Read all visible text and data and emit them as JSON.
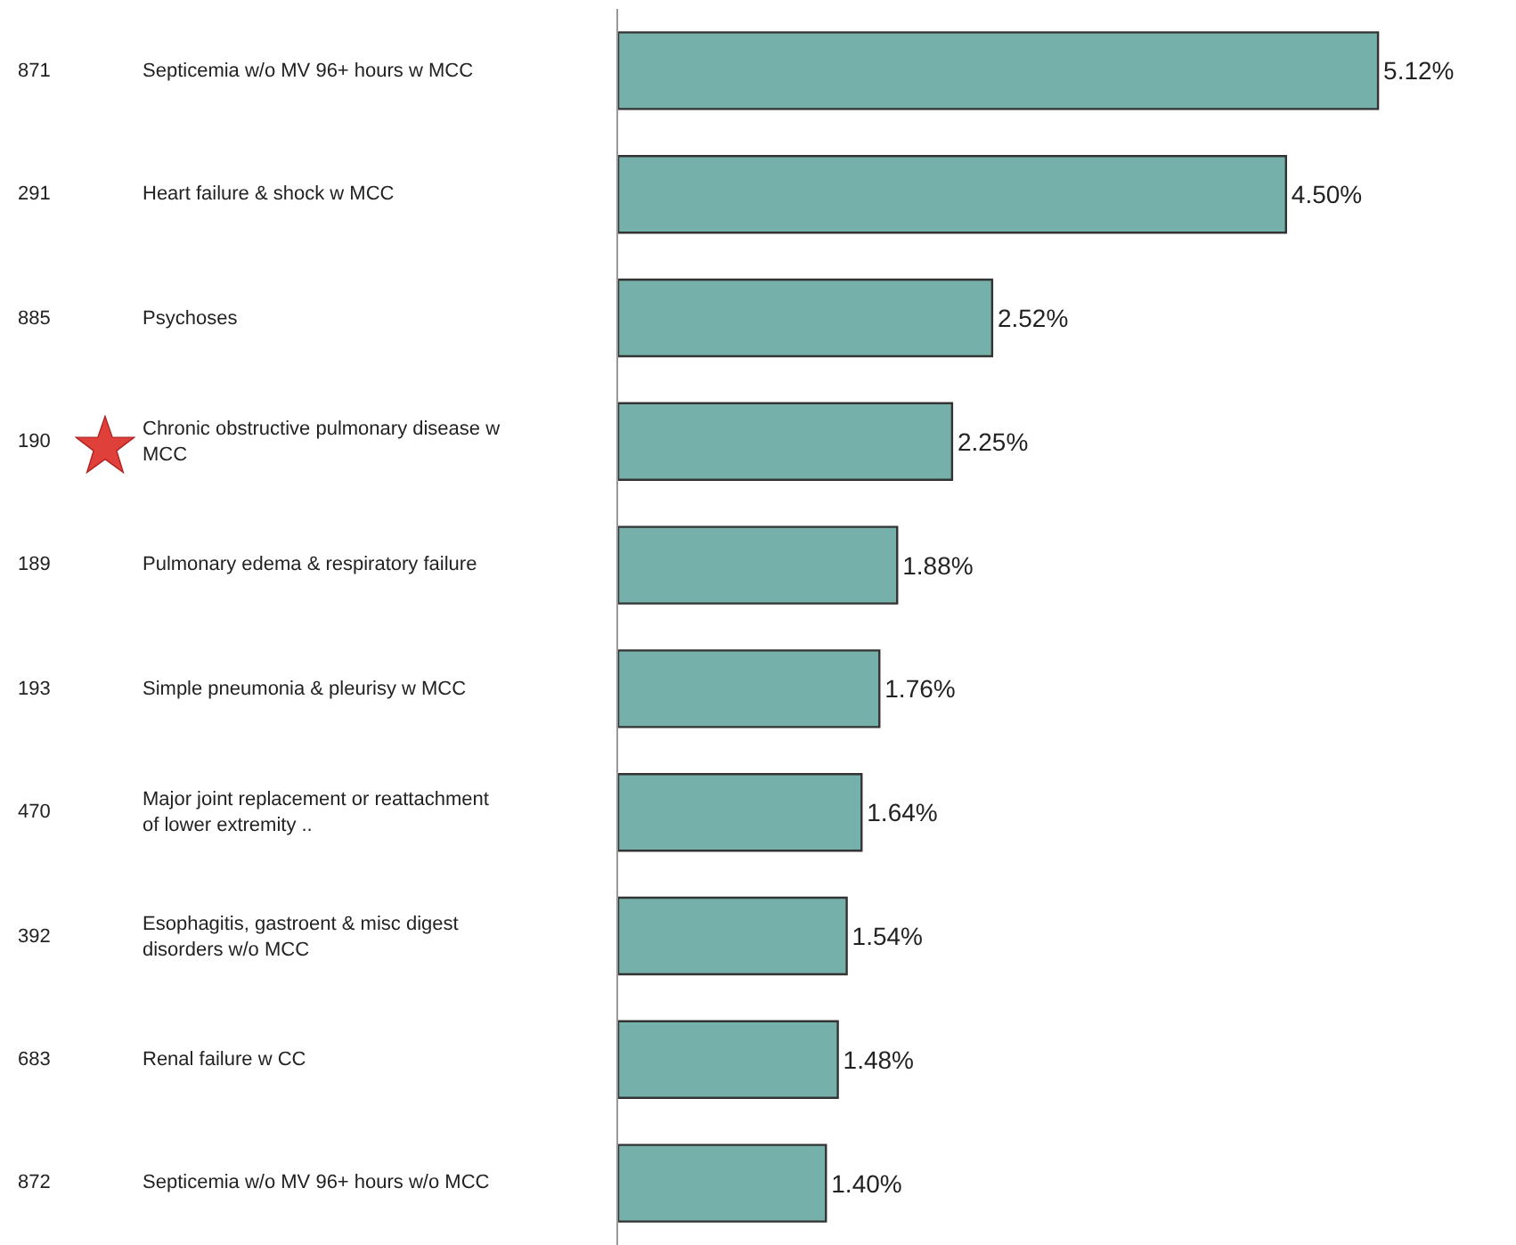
{
  "chart_data": {
    "type": "bar",
    "orientation": "horizontal",
    "categories": [
      "871 Septicemia w/o MV 96+ hours w MCC",
      "291 Heart failure & shock w MCC",
      "885 Psychoses",
      "190 Chronic obstructive pulmonary disease w MCC",
      "189 Pulmonary edema & respiratory failure",
      "193 Simple pneumonia & pleurisy w MCC",
      "470 Major joint replacement or reattachment of lower extremity ..",
      "392 Esophagitis, gastroent & misc digest disorders w/o MCC",
      "683 Renal failure w CC",
      "872 Septicemia w/o MV 96+ hours w/o MCC"
    ],
    "values": [
      5.12,
      4.5,
      2.52,
      2.25,
      1.88,
      1.76,
      1.64,
      1.54,
      1.48,
      1.4
    ],
    "value_labels": [
      "5.12%",
      "4.50%",
      "2.52%",
      "2.25%",
      "1.88%",
      "1.76%",
      "1.64%",
      "1.54%",
      "1.48%",
      "1.40%"
    ],
    "color": "#76b0ab",
    "grid": false,
    "legend": false
  }
}
